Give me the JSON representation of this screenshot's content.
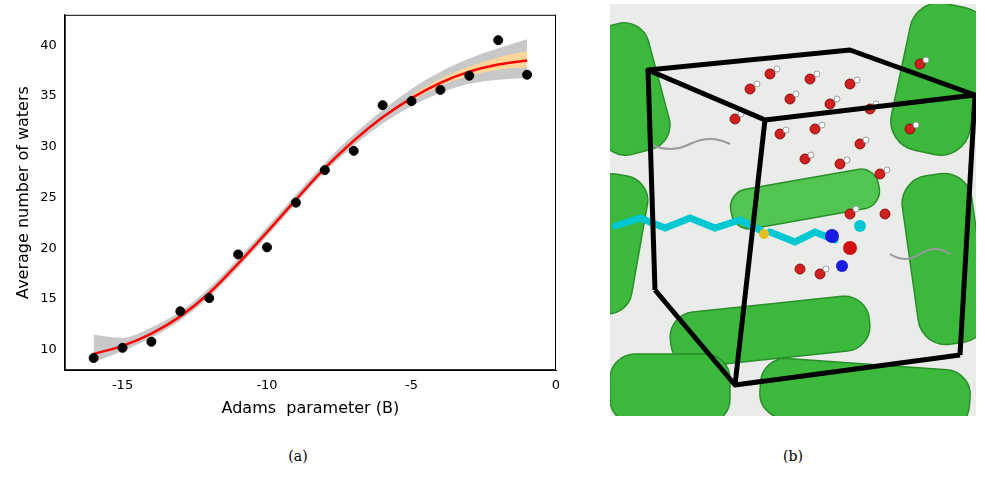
{
  "chart_data": {
    "type": "scatter",
    "label": "(a)",
    "x_label": "Adams  parameter (B)",
    "y_label": "Average number of waters",
    "xlim": [
      -17,
      0
    ],
    "xticks": [
      -15,
      -10,
      -5,
      0
    ],
    "ylim": [
      8,
      43
    ],
    "yticks": [
      10,
      15,
      20,
      25,
      30,
      35,
      40
    ],
    "grid": false,
    "series": [
      {
        "type": "scatter",
        "color": "#000000",
        "marker": "circle",
        "x": [
          -16,
          -15,
          -14,
          -13,
          -12,
          -11,
          -10,
          -9,
          -8,
          -7,
          -6,
          -5,
          -4,
          -3,
          -2,
          -1
        ],
        "values": [
          9.2,
          10.2,
          10.8,
          13.8,
          15.1,
          19.4,
          20.1,
          24.5,
          27.7,
          29.6,
          34.1,
          34.5,
          35.6,
          37.0,
          40.5,
          37.1
        ]
      },
      {
        "type": "line",
        "color": "#ff0000",
        "line_style": "solid",
        "x": [
          -16,
          -15,
          -14,
          -13,
          -12,
          -11,
          -10,
          -9,
          -8,
          -7,
          -6,
          -5,
          -4,
          -3,
          -2,
          -1
        ],
        "values": [
          9.6,
          10.4,
          11.6,
          13.3,
          15.6,
          18.5,
          21.6,
          24.8,
          27.9,
          30.6,
          32.9,
          34.8,
          36.3,
          37.4,
          38.1,
          38.5
        ]
      },
      {
        "type": "band",
        "color": "#ffd699",
        "x": [
          -5,
          -4,
          -3,
          -2,
          -1
        ],
        "lower": [
          34.6,
          36.0,
          37.0,
          37.6,
          37.8
        ],
        "upper": [
          35.1,
          36.7,
          37.9,
          38.8,
          39.4
        ]
      },
      {
        "type": "band",
        "color": "#c8c8c8",
        "x": [
          -16,
          -15,
          -14,
          -13,
          -12,
          -11,
          -10,
          -9,
          -8,
          -7,
          -6,
          -5,
          -4,
          -3,
          -2,
          -1
        ],
        "lower": [
          8.8,
          9.9,
          11.2,
          12.9,
          15.2,
          18.1,
          21.2,
          24.4,
          27.5,
          30.1,
          32.3,
          34.0,
          35.3,
          36.2,
          36.6,
          36.8
        ],
        "upper": [
          11.5,
          11.2,
          12.2,
          13.8,
          16.1,
          19.0,
          22.1,
          25.3,
          28.4,
          31.2,
          33.6,
          35.7,
          37.4,
          38.7,
          39.7,
          40.6
        ]
      }
    ]
  },
  "image_panel": {
    "label": "(b)"
  }
}
